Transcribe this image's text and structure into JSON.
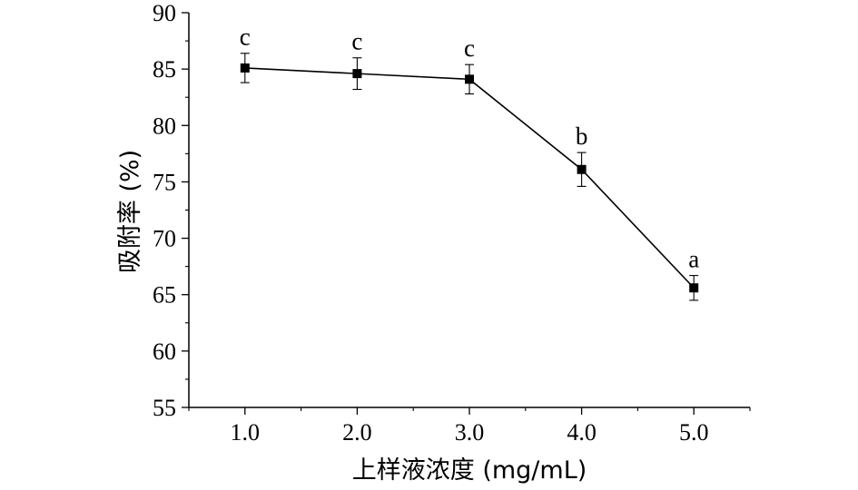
{
  "chart_data": {
    "type": "line",
    "title": "",
    "xlabel": "上样液浓度 (mg/mL)",
    "ylabel": "吸附率 (%)",
    "x_ticks": [
      "1.0",
      "2.0",
      "3.0",
      "4.0",
      "5.0"
    ],
    "y_ticks": [
      "55",
      "60",
      "65",
      "70",
      "75",
      "80",
      "85",
      "90"
    ],
    "xlim": [
      0.5,
      5.5
    ],
    "ylim": [
      55,
      90
    ],
    "grid": false,
    "series": [
      {
        "x": [
          1.0,
          2.0,
          3.0,
          4.0,
          5.0
        ],
        "values": [
          85.1,
          84.6,
          84.1,
          76.1,
          65.6
        ],
        "error": [
          1.3,
          1.4,
          1.3,
          1.5,
          1.1
        ],
        "labels": [
          "c",
          "c",
          "c",
          "b",
          "a"
        ],
        "marker": "square",
        "color": "#000000"
      }
    ]
  }
}
